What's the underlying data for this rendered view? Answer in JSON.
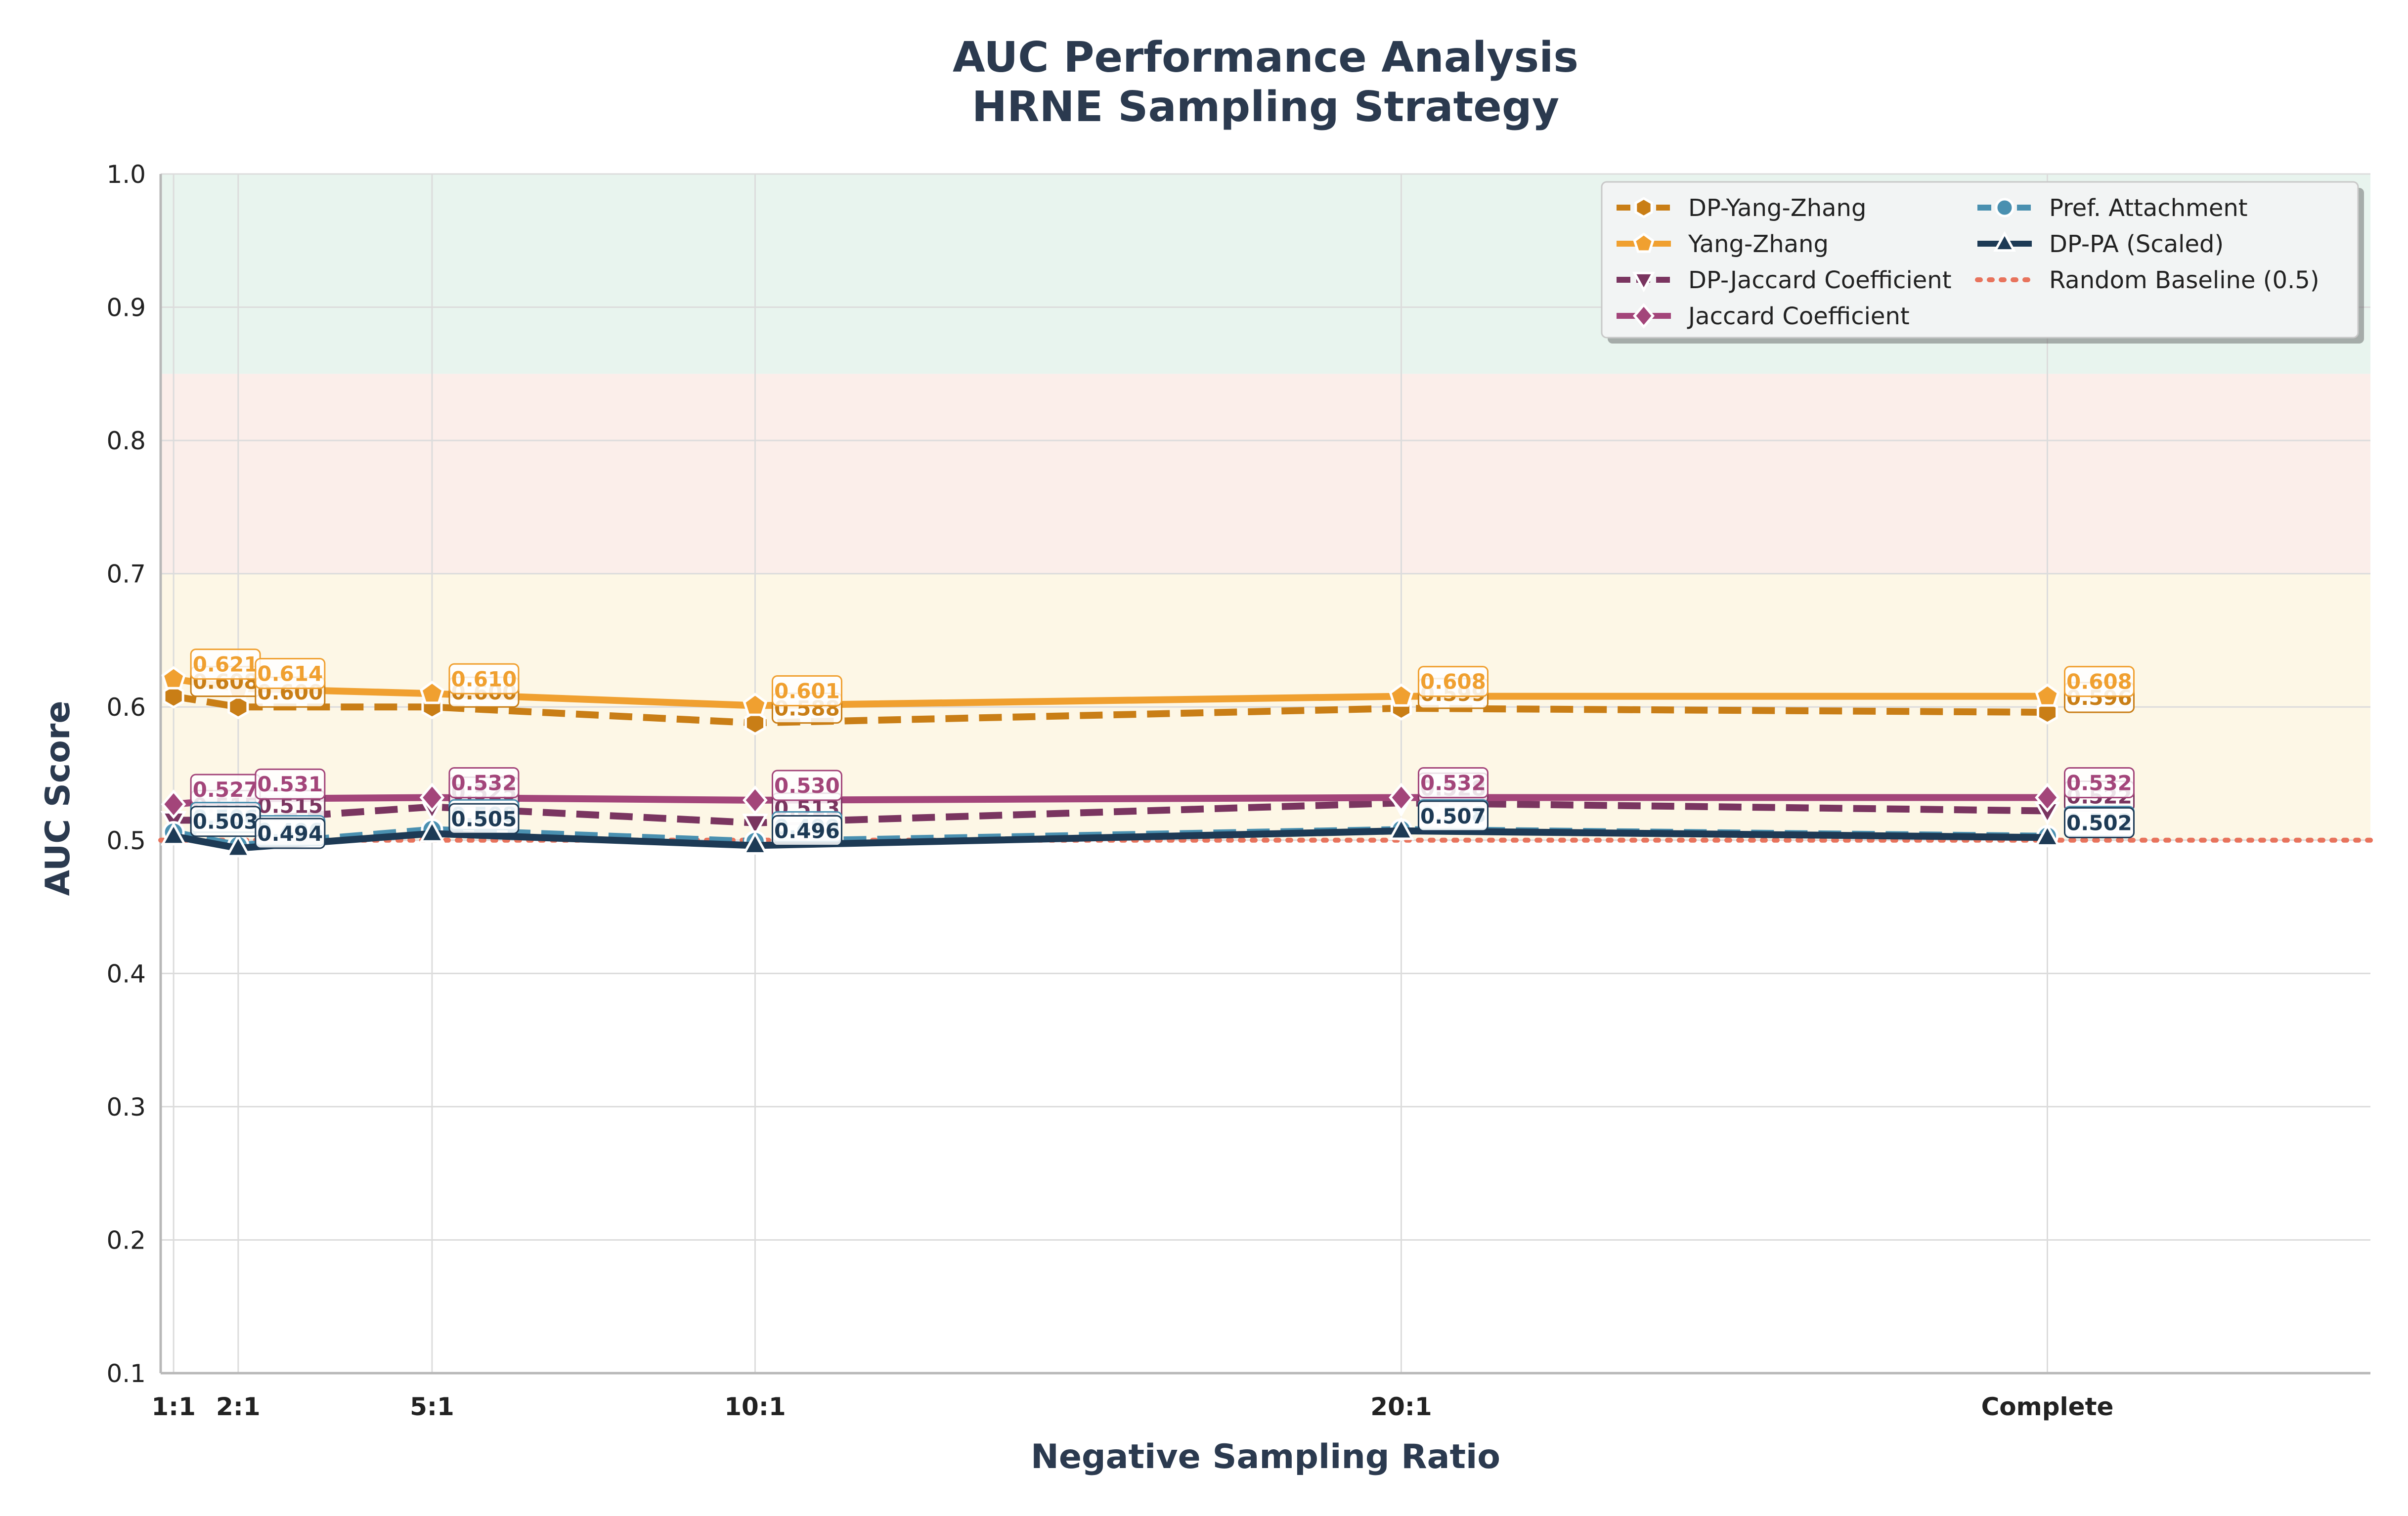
{
  "chart_data": {
    "type": "line",
    "title": [
      "AUC Performance Analysis",
      "HRNE Sampling Strategy"
    ],
    "xlabel": "Negative Sampling Ratio",
    "ylabel": "AUC Score",
    "x_ticks": [
      "1:1",
      "2:1",
      "5:1",
      "10:1",
      "20:1",
      "Complete"
    ],
    "x_values": [
      1,
      2,
      5,
      10,
      20,
      30
    ],
    "x_range": [
      0.8,
      35
    ],
    "ylim": [
      0.1,
      1.0
    ],
    "y_ticks": [
      "0.1",
      "0.2",
      "0.3",
      "0.4",
      "0.5",
      "0.6",
      "0.7",
      "0.8",
      "0.9",
      "1.0"
    ],
    "grid": true,
    "legend_position": "top-right",
    "bands": [
      {
        "from": 0.85,
        "to": 1.0,
        "color": "#e8f4ee"
      },
      {
        "from": 0.7,
        "to": 0.85,
        "color": "#fbeeea"
      },
      {
        "from": 0.5,
        "to": 0.7,
        "color": "#fdf7e6"
      }
    ],
    "baseline": {
      "name": "Random Baseline (0.5)",
      "value": 0.5,
      "color": "#e8735c"
    },
    "series": [
      {
        "name": "DP-Yang-Zhang",
        "color": "#c97e16",
        "dash": "dashed",
        "marker": "hexagon",
        "values": [
          0.608,
          0.6,
          0.6,
          0.588,
          0.599,
          0.596
        ],
        "labels": [
          "0.608",
          "0.600",
          "0.600",
          "0.588",
          "0.599",
          "0.596"
        ]
      },
      {
        "name": "Yang-Zhang",
        "color": "#f0a030",
        "dash": "solid",
        "marker": "pentagon",
        "values": [
          0.621,
          0.614,
          0.61,
          0.601,
          0.608,
          0.608
        ],
        "labels": [
          "0.621",
          "0.614",
          "0.610",
          "0.601",
          "0.608",
          "0.608"
        ]
      },
      {
        "name": "DP-Jaccard Coefficient",
        "color": "#7a3560",
        "dash": "dashed",
        "marker": "triangle-down",
        "values": [
          0.515,
          0.515,
          0.525,
          0.513,
          0.528,
          0.522
        ],
        "labels": [
          "0.515",
          "0.515",
          "0.525",
          "0.513",
          "0.528",
          "0.522"
        ]
      },
      {
        "name": "Jaccard Coefficient",
        "color": "#a3457a",
        "dash": "solid",
        "marker": "diamond",
        "values": [
          0.527,
          0.531,
          0.532,
          0.53,
          0.532,
          0.532
        ],
        "labels": [
          "0.527",
          "0.531",
          "0.532",
          "0.530",
          "0.532",
          "0.532"
        ]
      },
      {
        "name": "Pref. Attachment",
        "color": "#4a90b0",
        "dash": "dashed",
        "marker": "circle",
        "values": [
          0.506,
          0.496,
          0.508,
          0.499,
          0.508,
          0.503
        ],
        "labels": [
          "0.506",
          "0.496",
          "0.508",
          "0.499",
          "0.508",
          "0.503"
        ]
      },
      {
        "name": "DP-PA (Scaled)",
        "color": "#1d3a55",
        "dash": "solid",
        "marker": "triangle-up",
        "values": [
          0.503,
          0.494,
          0.505,
          0.496,
          0.507,
          0.502
        ],
        "labels": [
          "0.503",
          "0.494",
          "0.505",
          "0.496",
          "0.507",
          "0.502"
        ]
      }
    ]
  }
}
